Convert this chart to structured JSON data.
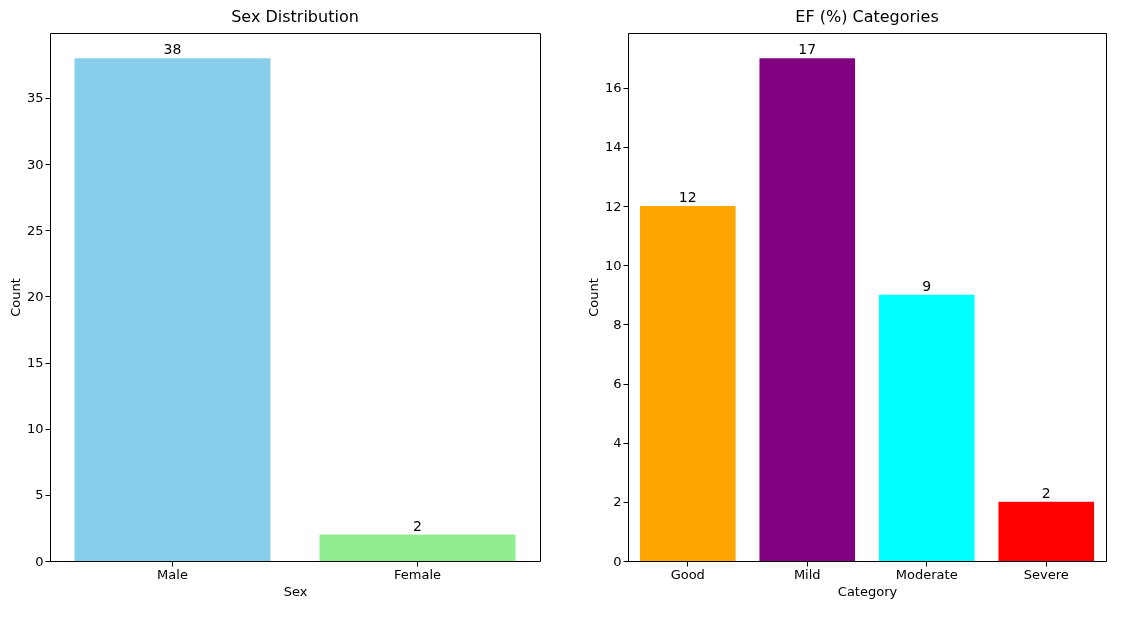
{
  "chart_data": [
    {
      "type": "bar",
      "title": "Sex Distribution",
      "xlabel": "Sex",
      "ylabel": "Count",
      "categories": [
        "Male",
        "Female"
      ],
      "values": [
        38,
        2
      ],
      "colors": [
        "#87ceeb",
        "#90ee90"
      ],
      "ylim": [
        0,
        39.9
      ],
      "yticks": [
        0,
        5,
        10,
        15,
        20,
        25,
        30,
        35
      ],
      "data_labels": true
    },
    {
      "type": "bar",
      "title": "EF (%) Categories",
      "xlabel": "Category",
      "ylabel": "Count",
      "categories": [
        "Good",
        "Mild",
        "Moderate",
        "Severe"
      ],
      "values": [
        12,
        17,
        9,
        2
      ],
      "colors": [
        "#ffa500",
        "#800080",
        "#00ffff",
        "#ff0000"
      ],
      "ylim": [
        0,
        17.85
      ],
      "yticks": [
        0,
        2,
        4,
        6,
        8,
        10,
        12,
        14,
        16
      ],
      "data_labels": true
    }
  ]
}
